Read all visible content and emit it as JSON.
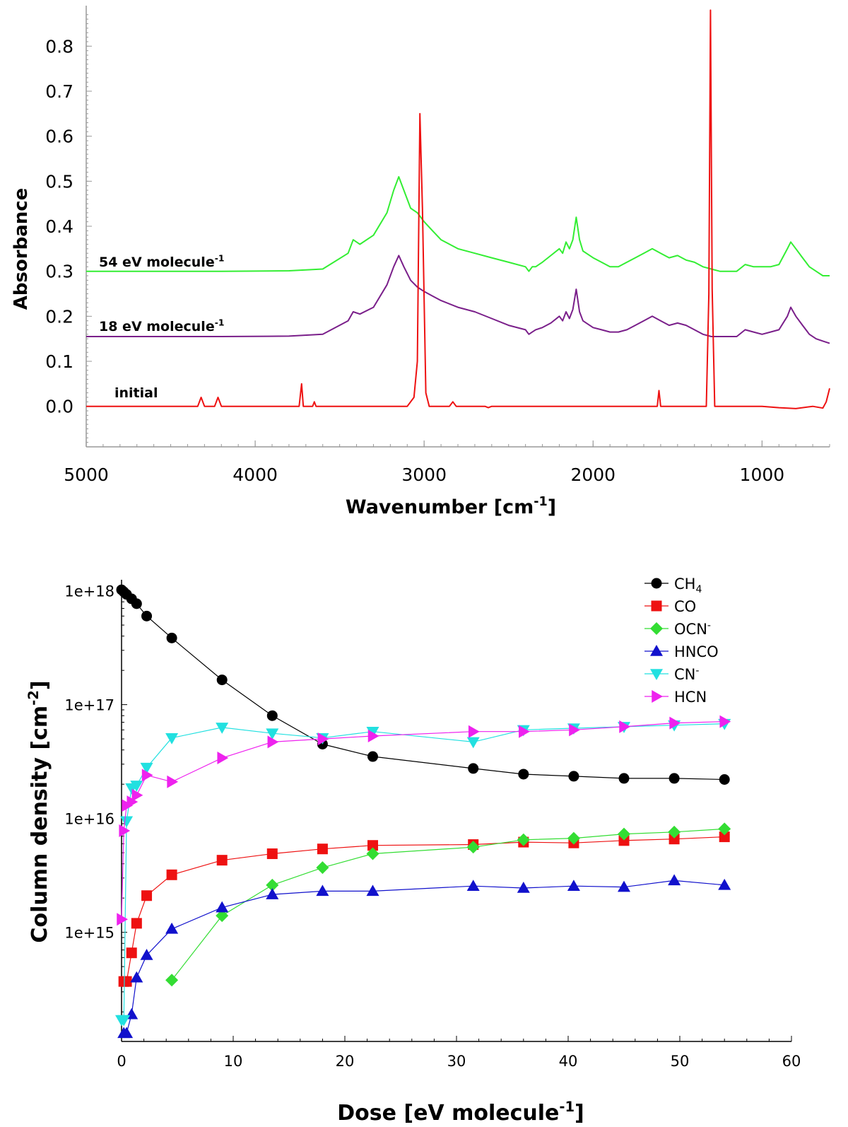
{
  "chart_data": [
    {
      "type": "line",
      "xlabel": "Wavenumber [cm",
      "xlabel_sup": "-1",
      "xlabel_end": "]",
      "ylabel": "Absorbance",
      "xlim": [
        5000,
        600
      ],
      "ylim": [
        -0.09,
        0.89
      ],
      "x_ticks": [
        5000,
        4000,
        3000,
        2000,
        1000
      ],
      "y_ticks": [
        "0.0",
        "0.1",
        "0.2",
        "0.3",
        "0.4",
        "0.5",
        "0.6",
        "0.7",
        "0.8"
      ],
      "annotations": [
        {
          "text": "54 eV molecule",
          "sup": "-1",
          "series": "54eV"
        },
        {
          "text": "18 eV molecule",
          "sup": "-1",
          "series": "18eV"
        },
        {
          "text": "initial",
          "sup": "",
          "series": "initial"
        }
      ],
      "series": [
        {
          "key": "54eV",
          "color": "#33ee33",
          "x": [
            5000,
            4600,
            4200,
            3800,
            3600,
            3450,
            3420,
            3380,
            3300,
            3220,
            3180,
            3150,
            3120,
            3080,
            3040,
            3000,
            2950,
            2900,
            2800,
            2700,
            2600,
            2500,
            2400,
            2380,
            2360,
            2340,
            2300,
            2250,
            2200,
            2180,
            2160,
            2140,
            2120,
            2100,
            2080,
            2060,
            2040,
            2000,
            1950,
            1900,
            1850,
            1800,
            1750,
            1700,
            1650,
            1600,
            1550,
            1500,
            1450,
            1400,
            1350,
            1300,
            1250,
            1200,
            1150,
            1100,
            1050,
            1000,
            950,
            900,
            850,
            830,
            800,
            760,
            720,
            680,
            640,
            600
          ],
          "y": [
            0.3,
            0.3,
            0.3,
            0.301,
            0.305,
            0.34,
            0.37,
            0.36,
            0.38,
            0.43,
            0.48,
            0.51,
            0.48,
            0.44,
            0.43,
            0.41,
            0.39,
            0.37,
            0.35,
            0.34,
            0.33,
            0.32,
            0.31,
            0.3,
            0.31,
            0.31,
            0.32,
            0.335,
            0.35,
            0.34,
            0.365,
            0.35,
            0.37,
            0.42,
            0.37,
            0.345,
            0.34,
            0.33,
            0.32,
            0.31,
            0.31,
            0.32,
            0.33,
            0.34,
            0.35,
            0.34,
            0.33,
            0.335,
            0.325,
            0.32,
            0.31,
            0.305,
            0.3,
            0.3,
            0.3,
            0.315,
            0.31,
            0.31,
            0.31,
            0.315,
            0.35,
            0.365,
            0.35,
            0.33,
            0.31,
            0.3,
            0.29,
            0.29
          ]
        },
        {
          "key": "18eV",
          "color": "#7a1f8a",
          "x": [
            5000,
            4600,
            4200,
            3800,
            3600,
            3450,
            3420,
            3380,
            3300,
            3220,
            3180,
            3150,
            3120,
            3080,
            3040,
            3000,
            2950,
            2900,
            2800,
            2700,
            2600,
            2500,
            2400,
            2380,
            2360,
            2340,
            2300,
            2250,
            2200,
            2180,
            2160,
            2140,
            2120,
            2100,
            2080,
            2060,
            2040,
            2000,
            1950,
            1900,
            1850,
            1800,
            1750,
            1700,
            1650,
            1600,
            1550,
            1500,
            1450,
            1400,
            1350,
            1300,
            1250,
            1200,
            1150,
            1100,
            1050,
            1000,
            950,
            900,
            850,
            830,
            800,
            760,
            720,
            680,
            640,
            600
          ],
          "y": [
            0.155,
            0.155,
            0.155,
            0.156,
            0.16,
            0.19,
            0.21,
            0.205,
            0.22,
            0.27,
            0.31,
            0.335,
            0.31,
            0.28,
            0.265,
            0.255,
            0.245,
            0.235,
            0.22,
            0.21,
            0.195,
            0.18,
            0.17,
            0.16,
            0.165,
            0.17,
            0.175,
            0.185,
            0.2,
            0.19,
            0.21,
            0.195,
            0.215,
            0.26,
            0.21,
            0.19,
            0.185,
            0.175,
            0.17,
            0.165,
            0.165,
            0.17,
            0.18,
            0.19,
            0.2,
            0.19,
            0.18,
            0.185,
            0.18,
            0.17,
            0.16,
            0.155,
            0.155,
            0.155,
            0.155,
            0.17,
            0.165,
            0.16,
            0.165,
            0.17,
            0.2,
            0.22,
            0.2,
            0.18,
            0.16,
            0.15,
            0.145,
            0.14
          ]
        },
        {
          "key": "initial",
          "color": "#ee1111",
          "x": [
            5000,
            4340,
            4320,
            4300,
            4280,
            4240,
            4220,
            4200,
            3740,
            3725,
            3715,
            3660,
            3650,
            3640,
            3100,
            3060,
            3040,
            3025,
            3010,
            2990,
            2970,
            2850,
            2830,
            2810,
            2640,
            2620,
            2600,
            1620,
            1610,
            1600,
            1330,
            1315,
            1305,
            1295,
            1280,
            1000,
            900,
            800,
            700,
            640,
            620,
            600
          ],
          "y": [
            0.0,
            0.0,
            0.02,
            0.0,
            0.0,
            0.0,
            0.02,
            0.0,
            0.0,
            0.05,
            0.0,
            0.0,
            0.01,
            0.0,
            0.0,
            0.02,
            0.1,
            0.65,
            0.44,
            0.03,
            0.0,
            0.0,
            0.01,
            0.0,
            0.0,
            -0.003,
            0.0,
            0.0,
            0.035,
            0.0,
            0.0,
            0.25,
            0.88,
            0.26,
            0.0,
            0.0,
            -0.003,
            -0.005,
            0.0,
            -0.004,
            0.01,
            0.04
          ]
        }
      ]
    },
    {
      "type": "line",
      "xlabel": "Dose [eV molecule",
      "xlabel_sup": "-1",
      "xlabel_end": "]",
      "ylabel": "Column density [cm",
      "ylabel_sup": "-2",
      "ylabel_end": "]",
      "y_scale": "log",
      "xlim": [
        0,
        60
      ],
      "ylim": [
        110000000000000.0,
        1.25e+18
      ],
      "x_ticks": [
        0,
        10,
        20,
        30,
        40,
        50,
        60
      ],
      "y_ticks": [
        {
          "v": 1e+18,
          "label": "1e+18"
        },
        {
          "v": 1e+17,
          "label": "1e+17"
        },
        {
          "v": 1e+16,
          "label": "1e+16"
        },
        {
          "v": 1000000000000000.0,
          "label": "1e+15"
        }
      ],
      "series": [
        {
          "name": "CH",
          "sub": "4",
          "sup": "",
          "marker": "circle",
          "color": "#000000",
          "x": [
            0,
            0.2,
            0.45,
            0.9,
            1.35,
            2.25,
            4.5,
            9,
            13.5,
            18,
            22.5,
            31.5,
            36,
            40.5,
            45,
            49.5,
            54
          ],
          "y": [
            1.02e+18,
            9.8e+17,
            9.3e+17,
            8.5e+17,
            7.7e+17,
            6e+17,
            3.85e+17,
            1.65e+17,
            8e+16,
            4.5e+16,
            3.5e+16,
            2.75e+16,
            2.45e+16,
            2.35e+16,
            2.25e+16,
            2.25e+16,
            2.2e+16
          ]
        },
        {
          "name": "CO",
          "sub": "",
          "sup": "",
          "marker": "square",
          "color": "#ee1111",
          "x": [
            0.2,
            0.45,
            0.9,
            1.35,
            2.25,
            4.5,
            9,
            13.5,
            18,
            22.5,
            31.5,
            36,
            40.5,
            45,
            49.5,
            54
          ],
          "y": [
            370000000000000.0,
            370000000000000.0,
            660000000000000.0,
            1200000000000000.0,
            2100000000000000.0,
            3200000000000000.0,
            4300000000000000.0,
            4900000000000000.0,
            5400000000000000.0,
            5800000000000000.0,
            5900000000000000.0,
            6200000000000000.0,
            6100000000000000.0,
            6400000000000000.0,
            6600000000000000.0,
            6900000000000000.0
          ]
        },
        {
          "name": "OCN",
          "sub": "",
          "sup": "-",
          "marker": "diamond",
          "color": "#33dd33",
          "x": [
            4.5,
            9,
            13.5,
            18,
            22.5,
            31.5,
            36,
            40.5,
            45,
            49.5,
            54
          ],
          "y": [
            380000000000000.0,
            1400000000000000.0,
            2600000000000000.0,
            3700000000000000.0,
            4900000000000000.0,
            5600000000000000.0,
            6500000000000000.0,
            6700000000000000.0,
            7300000000000000.0,
            7600000000000000.0,
            8100000000000000.0
          ]
        },
        {
          "name": "HNCO",
          "sub": "",
          "sup": "",
          "marker": "triangle-up",
          "color": "#1111cc",
          "x": [
            0.2,
            0.45,
            0.9,
            1.35,
            2.25,
            4.5,
            9,
            13.5,
            18,
            22.5,
            31.5,
            36,
            40.5,
            45,
            49.5,
            54
          ],
          "y": [
            130000000000000.0,
            130000000000000.0,
            190000000000000.0,
            400000000000000.0,
            630000000000000.0,
            1070000000000000.0,
            1650000000000000.0,
            2150000000000000.0,
            2300000000000000.0,
            2300000000000000.0,
            2550000000000000.0,
            2450000000000000.0,
            2550000000000000.0,
            2500000000000000.0,
            2850000000000000.0,
            2600000000000000.0
          ]
        },
        {
          "name": "CN",
          "sub": "",
          "sup": "-",
          "marker": "triangle-down",
          "color": "#22e0e0",
          "x": [
            0,
            0.2,
            0.45,
            0.9,
            1.35,
            2.25,
            4.5,
            9,
            13.5,
            18,
            22.5,
            31.5,
            36,
            40.5,
            45,
            49.5,
            54
          ],
          "y": [
            170000000000000.0,
            170000000000000.0,
            9500000000000000.0,
            1.85e+16,
            1.95e+16,
            2.8e+16,
            5.1e+16,
            6.3e+16,
            5.6e+16,
            5.1e+16,
            5.8e+16,
            4.7e+16,
            6e+16,
            6.2e+16,
            6.4e+16,
            6.6e+16,
            6.8e+16
          ]
        },
        {
          "name": "HCN",
          "sub": "",
          "sup": "",
          "marker": "triangle-right",
          "color": "#ee22ee",
          "x": [
            0,
            0.2,
            0.45,
            0.9,
            1.35,
            2.25,
            4.5,
            9,
            13.5,
            18,
            22.5,
            31.5,
            36,
            40.5,
            45,
            49.5,
            54
          ],
          "y": [
            1300000000000000.0,
            7800000000000000.0,
            1.3e+16,
            1.4e+16,
            1.6e+16,
            2.4e+16,
            2.1e+16,
            3.4e+16,
            4.7e+16,
            5e+16,
            5.3e+16,
            5.8e+16,
            5.8e+16,
            6e+16,
            6.4e+16,
            6.9e+16,
            7.1e+16
          ]
        }
      ]
    }
  ]
}
